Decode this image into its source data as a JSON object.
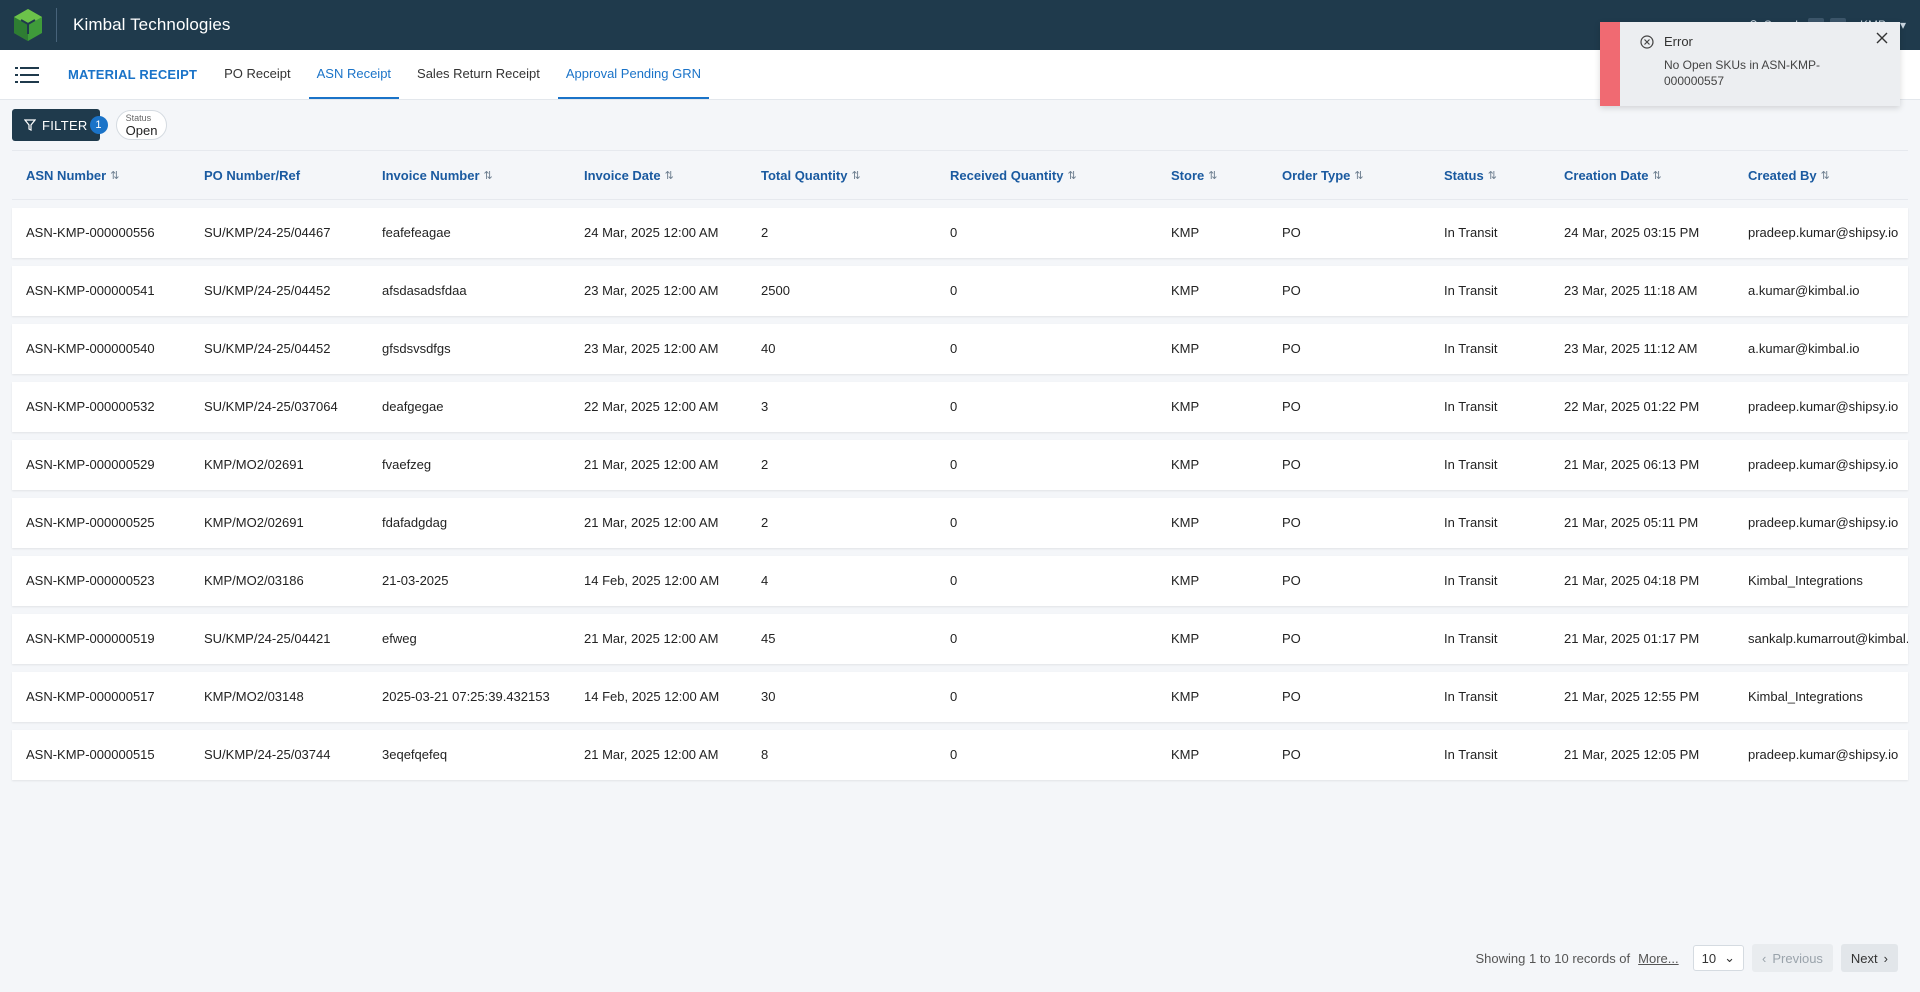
{
  "app": {
    "brand": "Kimbal Technologies",
    "search_label": "Search",
    "store_label": "KMP"
  },
  "subnav": {
    "title": "MATERIAL RECEIPT",
    "tabs": [
      {
        "label": "PO Receipt"
      },
      {
        "label": "ASN Receipt"
      },
      {
        "label": "Sales Return Receipt"
      },
      {
        "label": "Approval Pending GRN"
      }
    ]
  },
  "filter": {
    "label": "FILTER",
    "count": "1",
    "chip_label": "Status",
    "chip_value": "Open"
  },
  "table": {
    "headers": [
      "ASN Number",
      "PO Number/Ref",
      "Invoice Number",
      "Invoice Date",
      "Total Quantity",
      "Received Quantity",
      "Store",
      "Order Type",
      "Status",
      "Creation Date",
      "Created By"
    ],
    "rows": [
      [
        "ASN-KMP-000000556",
        "SU/KMP/24-25/04467",
        "feafefeagae",
        "24 Mar, 2025 12:00 AM",
        "2",
        "0",
        "KMP",
        "PO",
        "In Transit",
        "24 Mar, 2025 03:15 PM",
        "pradeep.kumar@shipsy.io"
      ],
      [
        "ASN-KMP-000000541",
        "SU/KMP/24-25/04452",
        "afsdasadsfdaa",
        "23 Mar, 2025 12:00 AM",
        "2500",
        "0",
        "KMP",
        "PO",
        "In Transit",
        "23 Mar, 2025 11:18 AM",
        "a.kumar@kimbal.io"
      ],
      [
        "ASN-KMP-000000540",
        "SU/KMP/24-25/04452",
        "gfsdsvsdfgs",
        "23 Mar, 2025 12:00 AM",
        "40",
        "0",
        "KMP",
        "PO",
        "In Transit",
        "23 Mar, 2025 11:12 AM",
        "a.kumar@kimbal.io"
      ],
      [
        "ASN-KMP-000000532",
        "SU/KMP/24-25/037064",
        "deafgegae",
        "22 Mar, 2025 12:00 AM",
        "3",
        "0",
        "KMP",
        "PO",
        "In Transit",
        "22 Mar, 2025 01:22 PM",
        "pradeep.kumar@shipsy.io"
      ],
      [
        "ASN-KMP-000000529",
        "KMP/MO2/02691",
        "fvaefzeg",
        "21 Mar, 2025 12:00 AM",
        "2",
        "0",
        "KMP",
        "PO",
        "In Transit",
        "21 Mar, 2025 06:13 PM",
        "pradeep.kumar@shipsy.io"
      ],
      [
        "ASN-KMP-000000525",
        "KMP/MO2/02691",
        "fdafadgdag",
        "21 Mar, 2025 12:00 AM",
        "2",
        "0",
        "KMP",
        "PO",
        "In Transit",
        "21 Mar, 2025 05:11 PM",
        "pradeep.kumar@shipsy.io"
      ],
      [
        "ASN-KMP-000000523",
        "KMP/MO2/03186",
        "21-03-2025",
        "14 Feb, 2025 12:00 AM",
        "4",
        "0",
        "KMP",
        "PO",
        "In Transit",
        "21 Mar, 2025 04:18 PM",
        "Kimbal_Integrations"
      ],
      [
        "ASN-KMP-000000519",
        "SU/KMP/24-25/04421",
        "efweg",
        "21 Mar, 2025 12:00 AM",
        "45",
        "0",
        "KMP",
        "PO",
        "In Transit",
        "21 Mar, 2025 01:17 PM",
        "sankalp.kumarrout@kimbal.io"
      ],
      [
        "ASN-KMP-000000517",
        "KMP/MO2/03148",
        "2025-03-21 07:25:39.432153",
        "14 Feb, 2025 12:00 AM",
        "30",
        "0",
        "KMP",
        "PO",
        "In Transit",
        "21 Mar, 2025 12:55 PM",
        "Kimbal_Integrations"
      ],
      [
        "ASN-KMP-000000515",
        "SU/KMP/24-25/03744",
        "3eqefqefeq",
        "21 Mar, 2025 12:00 AM",
        "8",
        "0",
        "KMP",
        "PO",
        "In Transit",
        "21 Mar, 2025 12:05 PM",
        "pradeep.kumar@shipsy.io"
      ]
    ]
  },
  "pagination": {
    "summary": "Showing 1 to 10 records of",
    "more": "More...",
    "page_size": "10",
    "prev": "Previous",
    "next": "Next"
  },
  "toast": {
    "title": "Error",
    "message": "No Open SKUs in ASN-KMP-000000557"
  }
}
